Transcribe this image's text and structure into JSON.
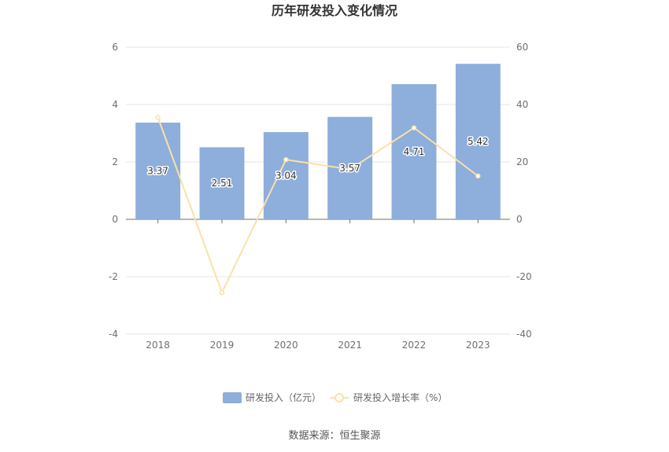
{
  "chart_data": {
    "type": "bar",
    "title": "历年研发投入变化情况",
    "categories": [
      "2018",
      "2019",
      "2020",
      "2021",
      "2022",
      "2023"
    ],
    "series": [
      {
        "name": "研发投入（亿元）",
        "type": "bar",
        "axis": "left",
        "color": "#8eaedb",
        "values": [
          3.37,
          2.51,
          3.04,
          3.57,
          4.71,
          5.42
        ],
        "labels": [
          "3.37",
          "2.51",
          "3.04",
          "3.57",
          "4.71",
          "5.42"
        ]
      },
      {
        "name": "研发投入增长率（%）",
        "type": "line",
        "axis": "right",
        "color": "#fbe0a8",
        "values": [
          35.5,
          -25.5,
          20.8,
          17.4,
          31.9,
          15.1
        ]
      }
    ],
    "y_left": {
      "min": -4,
      "max": 6,
      "ticks": [
        "6",
        "4",
        "2",
        "0",
        "-2",
        "-4"
      ]
    },
    "y_right": {
      "min": -40,
      "max": 60,
      "ticks": [
        "60",
        "40",
        "20",
        "0",
        "-20",
        "-40"
      ]
    },
    "grid": true,
    "legend_position": "bottom-center"
  },
  "source": "数据来源：恒生聚源"
}
